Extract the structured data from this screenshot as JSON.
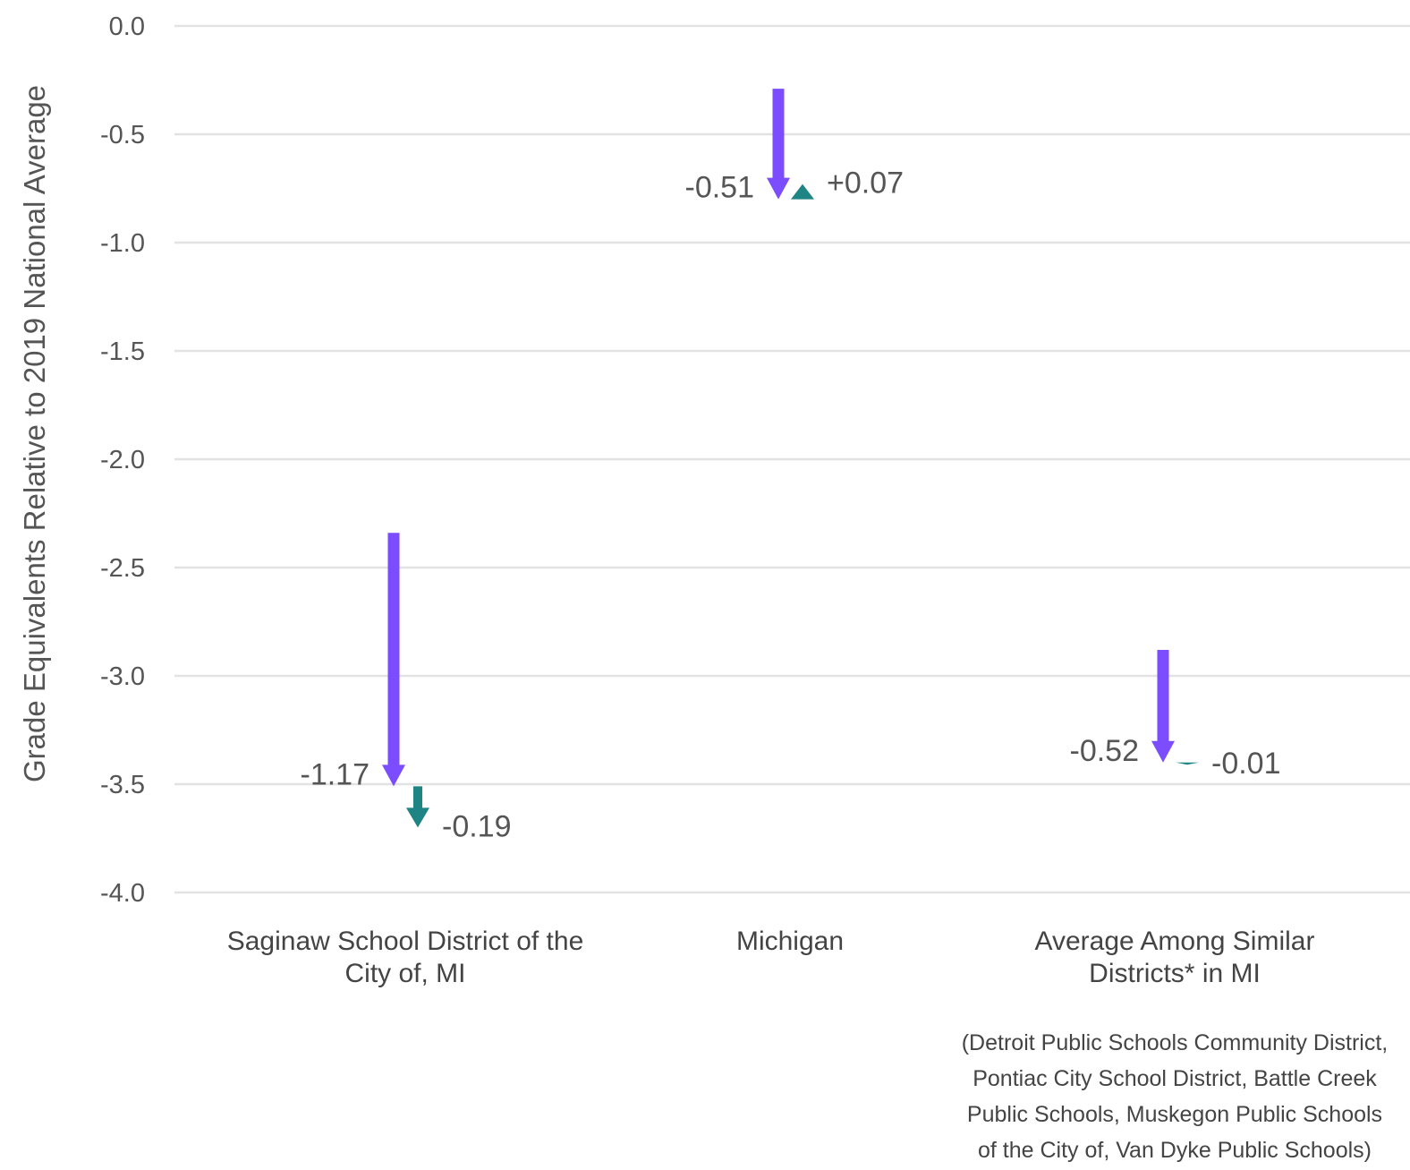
{
  "chart_data": {
    "type": "arrow",
    "ylabel": "Grade Equivalents Relative to 2019 National Average",
    "xlabel": "",
    "ylim": [
      -4.0,
      0.0
    ],
    "yticks": [
      0.0,
      -0.5,
      -1.0,
      -1.5,
      -2.0,
      -2.5,
      -3.0,
      -3.5,
      -4.0
    ],
    "ytick_labels": [
      "0.0",
      "-0.5",
      "-1.0",
      "-1.5",
      "-2.0",
      "-2.5",
      "-3.0",
      "-3.5",
      "-4.0"
    ],
    "grid": true,
    "categories": [
      [
        "Saginaw School District of the",
        "City of, MI"
      ],
      [
        "Michigan"
      ],
      [
        "Average Among Similar",
        "Districts* in MI"
      ]
    ],
    "series": [
      {
        "colour": "#7b4dff",
        "start": [
          -2.34,
          -0.29,
          -2.88
        ],
        "end": [
          -3.51,
          -0.8,
          -3.4
        ],
        "labels": [
          "-1.17",
          "-0.51",
          "-0.52"
        ]
      },
      {
        "colour": "#1f8584",
        "start": [
          -3.51,
          -0.8,
          -3.4
        ],
        "end": [
          -3.7,
          -0.73,
          -3.41
        ],
        "labels": [
          "-0.19",
          "+0.07",
          "-0.01"
        ]
      }
    ],
    "footnote": [
      "(Detroit Public Schools Community District,",
      "Pontiac City School District, Battle Creek",
      "Public Schools, Muskegon Public Schools",
      "of the City of, Van Dyke Public Schools)"
    ]
  }
}
